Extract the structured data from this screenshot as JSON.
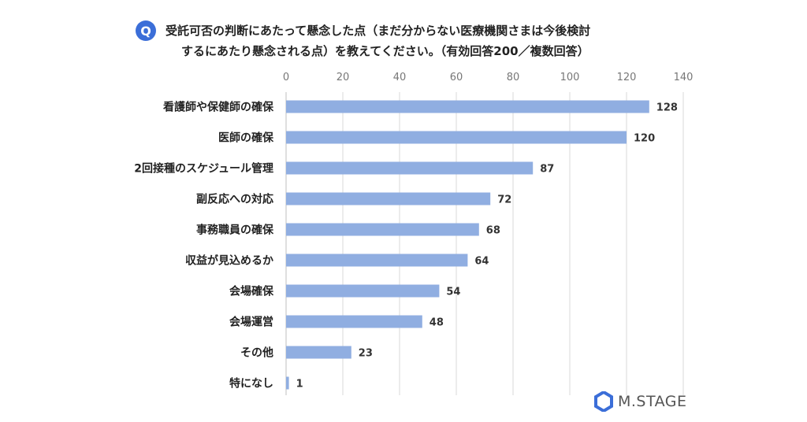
{
  "question": {
    "badge": "Q",
    "line1": "受託可否の判断にあたって懸念した点（まだ分からない医療機関さまは今後検討",
    "line2": "するにあたり懸念される点）を教えてください。（有効回答200／複数回答）"
  },
  "brand": {
    "name": "M.STAGE"
  },
  "colors": {
    "bar": "#90aee1",
    "grid": "#d9d9d9",
    "badge": "#3b6ed8",
    "logo": "#3b6ed8"
  },
  "chart_data": {
    "type": "bar",
    "orientation": "horizontal",
    "categories": [
      "看護師や保健師の確保",
      "医師の確保",
      "2回接種のスケジュール管理",
      "副反応への対応",
      "事務職員の確保",
      "収益が見込めるか",
      "会場確保",
      "会場運営",
      "その他",
      "特になし"
    ],
    "values": [
      128,
      120,
      87,
      72,
      68,
      64,
      54,
      48,
      23,
      1
    ],
    "xlim": [
      0,
      140
    ],
    "xticks": [
      0,
      20,
      40,
      60,
      80,
      100,
      120,
      140
    ],
    "axis_position": "top",
    "grid": true,
    "data_labels": true
  }
}
